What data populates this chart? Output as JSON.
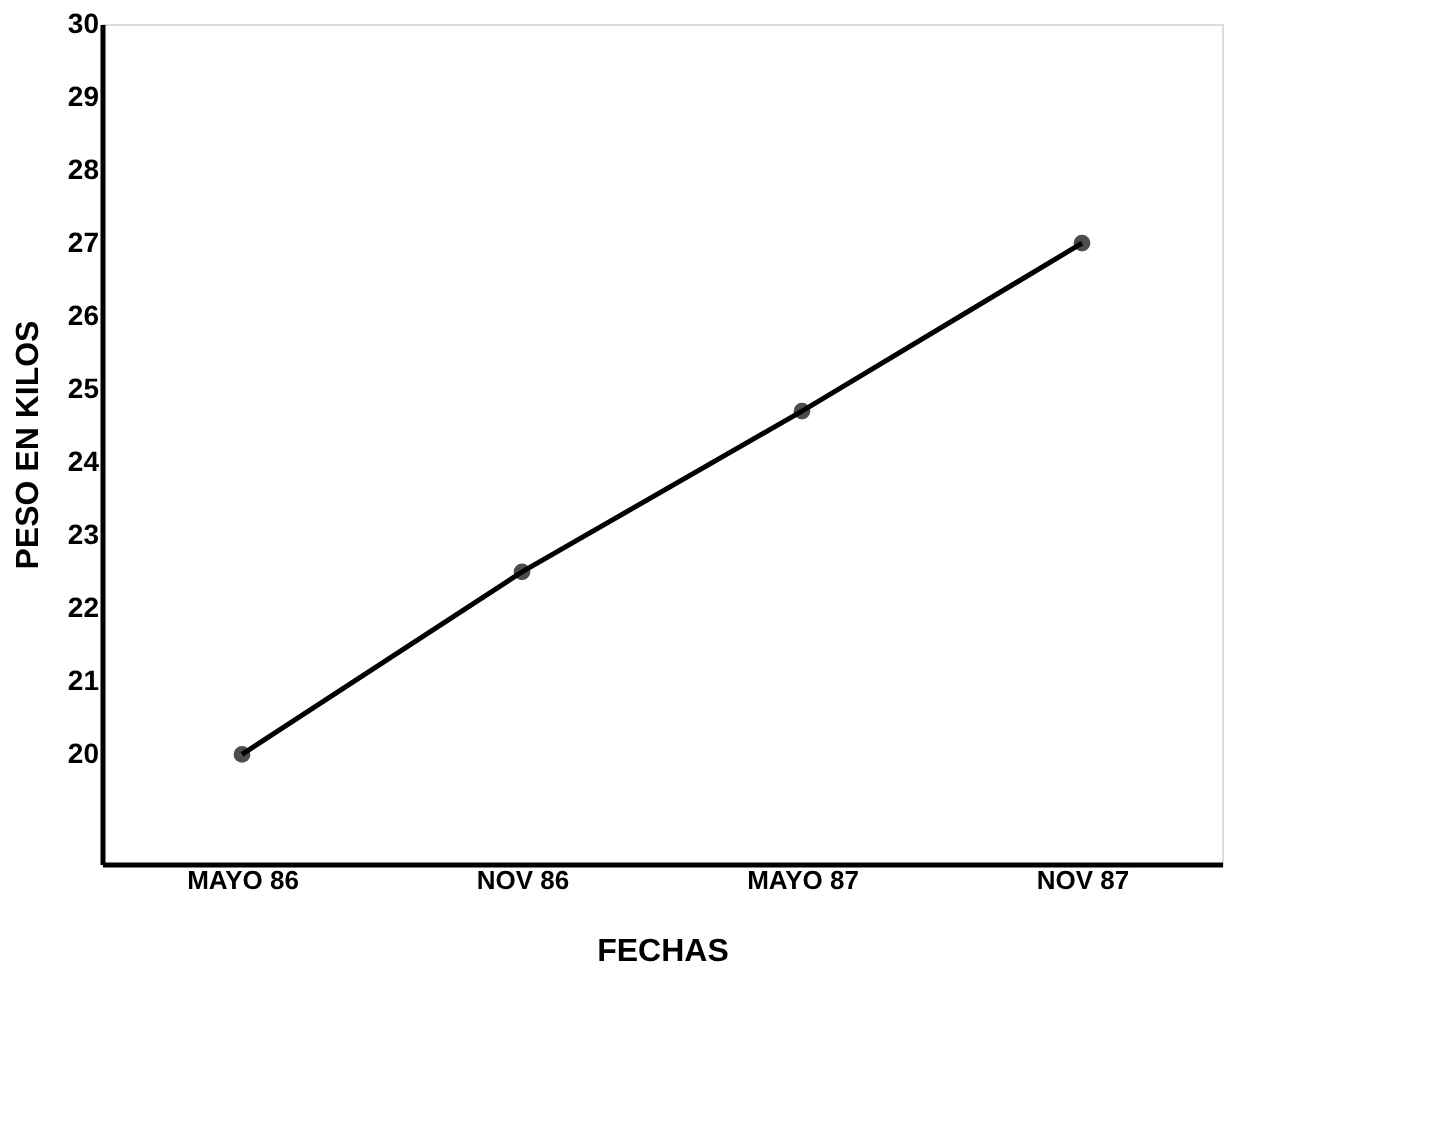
{
  "chart_data": {
    "type": "line",
    "xlabel": "FECHAS",
    "ylabel": "PESO EN KILOS",
    "categories": [
      "MAYO 86",
      "NOV 86",
      "MAYO 87",
      "NOV 87"
    ],
    "series": [
      {
        "color": "#000000",
        "values": [
          20,
          22.5,
          24.7,
          27
        ]
      }
    ],
    "ylim": [
      18.5,
      30
    ],
    "yticks": [
      20,
      21,
      22,
      23,
      24,
      25,
      26,
      27,
      28,
      29,
      30
    ],
    "grid": false,
    "marker": "circle",
    "line_style": "solid"
  }
}
